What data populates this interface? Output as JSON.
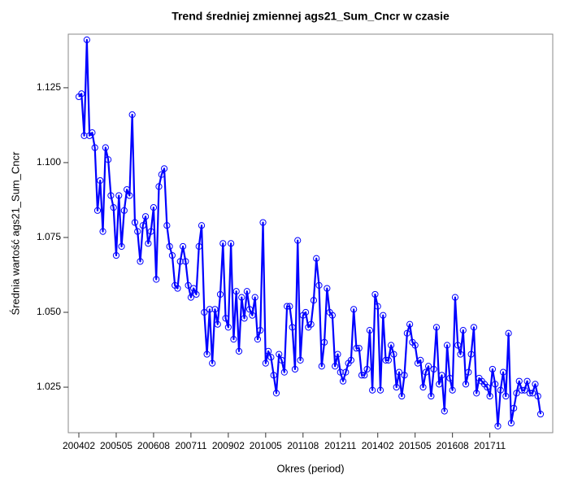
{
  "chart_data": {
    "type": "line",
    "title": "Trend średniej zmiennej ags21_Sum_Cncr w czasie",
    "x_label": "Okres (period)",
    "y_label": "Średnia wartość ags21_Sum_Cncr",
    "categories": [
      "200402",
      null,
      null,
      null,
      null,
      null,
      null,
      null,
      null,
      null,
      null,
      null,
      null,
      null,
      "200505",
      null,
      null,
      null,
      null,
      null,
      null,
      null,
      null,
      null,
      null,
      null,
      null,
      null,
      "200608",
      null,
      null,
      null,
      null,
      null,
      null,
      null,
      null,
      null,
      null,
      null,
      null,
      null,
      "200711",
      null,
      null,
      null,
      null,
      null,
      null,
      null,
      null,
      null,
      null,
      null,
      null,
      null,
      "200902",
      null,
      null,
      null,
      null,
      null,
      null,
      null,
      null,
      null,
      null,
      null,
      null,
      null,
      "201005",
      null,
      null,
      null,
      null,
      null,
      null,
      null,
      null,
      null,
      null,
      null,
      null,
      null,
      "201108",
      null,
      null,
      null,
      null,
      null,
      null,
      null,
      null,
      null,
      null,
      null,
      null,
      null,
      "201211",
      null,
      null,
      null,
      null,
      null,
      null,
      null,
      null,
      null,
      null,
      null,
      null,
      null,
      "201402",
      null,
      null,
      null,
      null,
      null,
      null,
      null,
      null,
      null,
      null,
      null,
      null,
      null,
      "201505",
      null,
      null,
      null,
      null,
      null,
      null,
      null,
      null,
      null,
      null,
      null,
      null,
      null,
      "201608",
      null,
      null,
      null,
      null,
      null,
      null,
      null,
      null,
      null,
      null,
      null,
      null,
      null,
      "201711",
      null,
      null,
      null,
      null,
      null,
      null,
      null,
      null,
      null,
      null,
      null,
      null,
      null,
      null,
      null,
      null,
      null,
      null,
      null
    ],
    "series": [
      {
        "name": "ags21_Sum_Cncr",
        "color": "#0000ff",
        "values": [
          1.122,
          1.123,
          1.109,
          1.141,
          1.109,
          1.11,
          1.105,
          1.084,
          1.094,
          1.077,
          1.105,
          1.101,
          1.089,
          1.085,
          1.069,
          1.089,
          1.072,
          1.084,
          1.091,
          1.089,
          1.116,
          1.08,
          1.077,
          1.067,
          1.079,
          1.082,
          1.073,
          1.077,
          1.085,
          1.061,
          1.092,
          1.096,
          1.098,
          1.079,
          1.072,
          1.069,
          1.059,
          1.058,
          1.067,
          1.072,
          1.067,
          1.059,
          1.055,
          1.058,
          1.056,
          1.072,
          1.079,
          1.05,
          1.036,
          1.051,
          1.033,
          1.051,
          1.046,
          1.056,
          1.073,
          1.048,
          1.045,
          1.073,
          1.041,
          1.057,
          1.037,
          1.055,
          1.048,
          1.057,
          1.051,
          1.049,
          1.055,
          1.041,
          1.044,
          1.08,
          1.033,
          1.037,
          1.035,
          1.029,
          1.023,
          1.036,
          1.034,
          1.03,
          1.052,
          1.052,
          1.045,
          1.031,
          1.074,
          1.034,
          1.049,
          1.05,
          1.045,
          1.046,
          1.054,
          1.068,
          1.059,
          1.032,
          1.04,
          1.058,
          1.05,
          1.049,
          1.032,
          1.036,
          1.03,
          1.027,
          1.03,
          1.033,
          1.034,
          1.051,
          1.038,
          1.038,
          1.029,
          1.029,
          1.031,
          1.044,
          1.024,
          1.056,
          1.052,
          1.024,
          1.049,
          1.034,
          1.034,
          1.039,
          1.036,
          1.025,
          1.03,
          1.022,
          1.029,
          1.043,
          1.046,
          1.04,
          1.039,
          1.033,
          1.034,
          1.025,
          1.03,
          1.032,
          1.022,
          1.031,
          1.045,
          1.026,
          1.029,
          1.017,
          1.039,
          1.028,
          1.024,
          1.055,
          1.039,
          1.036,
          1.044,
          1.026,
          1.03,
          1.036,
          1.045,
          1.023,
          1.028,
          1.027,
          1.026,
          1.025,
          1.022,
          1.031,
          1.026,
          1.012,
          1.024,
          1.03,
          1.022,
          1.043,
          1.013,
          1.018,
          1.023,
          1.027,
          1.024,
          1.024,
          1.027,
          1.023,
          1.023,
          1.026,
          1.022,
          1.016
        ]
      }
    ],
    "ylim": [
      1.0098,
      1.1429
    ],
    "yticks": [
      1.025,
      {
        "value": 1.05,
        "label": "1.050"
      },
      1.075,
      {
        "value": 1.1,
        "label": "1.100"
      },
      1.125
    ],
    "grid": false
  }
}
